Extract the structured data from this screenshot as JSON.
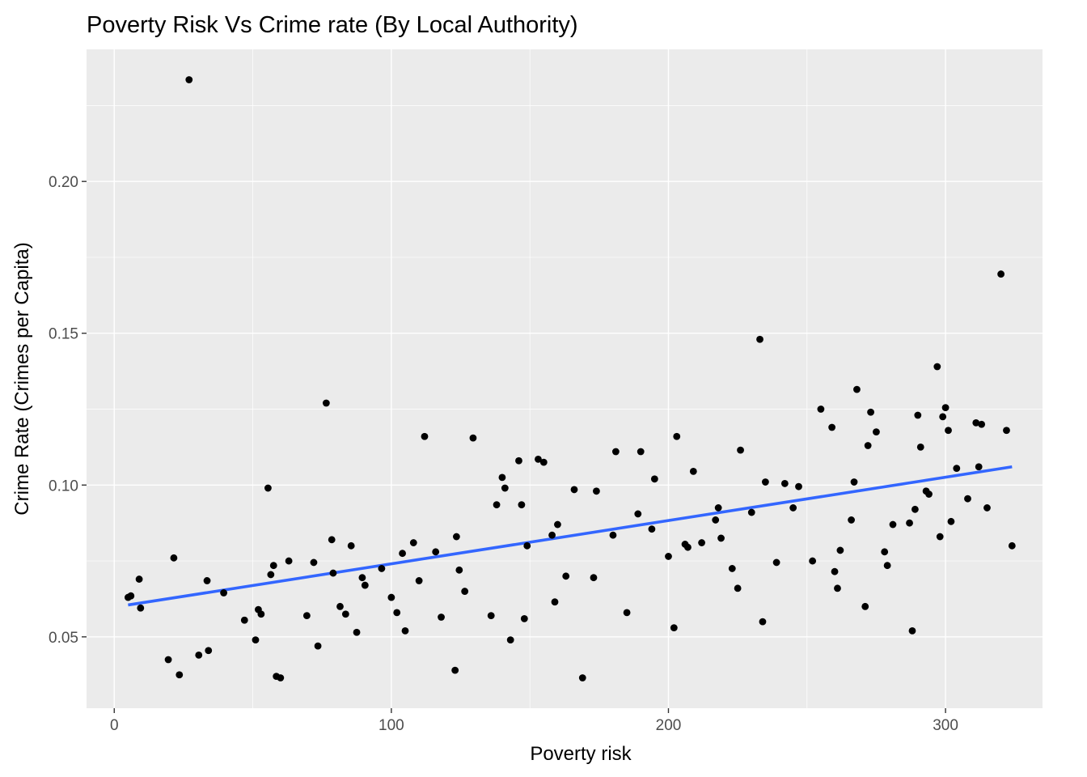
{
  "chart_data": {
    "type": "scatter",
    "title": "Poverty Risk Vs Crime rate (By Local Authority)",
    "xlabel": "Poverty risk",
    "ylabel": "Crime Rate (Crimes per Capita)",
    "xlim": [
      -10,
      335
    ],
    "ylim": [
      0.0265,
      0.2435
    ],
    "x_ticks": [
      0,
      100,
      200,
      300
    ],
    "y_ticks": [
      0.05,
      0.1,
      0.15,
      0.2
    ],
    "x_tick_labels": [
      "0",
      "100",
      "200",
      "300"
    ],
    "y_tick_labels": [
      "0.05",
      "0.10",
      "0.15",
      "0.20"
    ],
    "x_minor_ticks": [
      50,
      150,
      250
    ],
    "y_minor_ticks": [
      0.075,
      0.125,
      0.175,
      0.225
    ],
    "panel_background": "#ebebeb",
    "point_color": "#000000",
    "trend_color": "#3366ff",
    "grid": true,
    "series": [
      {
        "points": [
          [
            5,
            0.063
          ],
          [
            6,
            0.0635
          ],
          [
            9,
            0.069
          ],
          [
            9.5,
            0.0595
          ],
          [
            19.5,
            0.0425
          ],
          [
            21.5,
            0.076
          ],
          [
            23.5,
            0.0375
          ],
          [
            27,
            0.2335
          ],
          [
            30.5,
            0.044
          ],
          [
            33.5,
            0.0685
          ],
          [
            34,
            0.0455
          ],
          [
            39.5,
            0.0645
          ],
          [
            47,
            0.0555
          ],
          [
            51,
            0.049
          ],
          [
            52,
            0.059
          ],
          [
            53,
            0.0575
          ],
          [
            55.5,
            0.099
          ],
          [
            56.5,
            0.0705
          ],
          [
            57.5,
            0.0735
          ],
          [
            58.5,
            0.037
          ],
          [
            60,
            0.0365
          ],
          [
            63,
            0.075
          ],
          [
            69.5,
            0.057
          ],
          [
            72,
            0.0745
          ],
          [
            73.5,
            0.047
          ],
          [
            76.5,
            0.127
          ],
          [
            78.5,
            0.082
          ],
          [
            79,
            0.071
          ],
          [
            81.5,
            0.06
          ],
          [
            83.5,
            0.0575
          ],
          [
            85.5,
            0.08
          ],
          [
            87.5,
            0.0515
          ],
          [
            89.5,
            0.0695
          ],
          [
            90.5,
            0.067
          ],
          [
            96.5,
            0.0725
          ],
          [
            100,
            0.063
          ],
          [
            102,
            0.058
          ],
          [
            104,
            0.0775
          ],
          [
            105,
            0.052
          ],
          [
            108,
            0.081
          ],
          [
            110,
            0.0685
          ],
          [
            112,
            0.116
          ],
          [
            116,
            0.078
          ],
          [
            118,
            0.0565
          ],
          [
            123,
            0.039
          ],
          [
            123.5,
            0.083
          ],
          [
            124.5,
            0.072
          ],
          [
            126.5,
            0.065
          ],
          [
            129.5,
            0.1155
          ],
          [
            136,
            0.057
          ],
          [
            138,
            0.0935
          ],
          [
            140,
            0.1025
          ],
          [
            141,
            0.099
          ],
          [
            143,
            0.049
          ],
          [
            146,
            0.108
          ],
          [
            147,
            0.0935
          ],
          [
            148,
            0.056
          ],
          [
            149,
            0.08
          ],
          [
            153,
            0.1085
          ],
          [
            155,
            0.1075
          ],
          [
            158,
            0.0835
          ],
          [
            159,
            0.0615
          ],
          [
            160,
            0.087
          ],
          [
            163,
            0.07
          ],
          [
            166,
            0.0985
          ],
          [
            169,
            0.0365
          ],
          [
            173,
            0.0695
          ],
          [
            174,
            0.098
          ],
          [
            180,
            0.0835
          ],
          [
            181,
            0.111
          ],
          [
            185,
            0.058
          ],
          [
            189,
            0.0905
          ],
          [
            190,
            0.111
          ],
          [
            194,
            0.0855
          ],
          [
            195,
            0.102
          ],
          [
            200,
            0.0765
          ],
          [
            202,
            0.053
          ],
          [
            203,
            0.116
          ],
          [
            206,
            0.0805
          ],
          [
            207,
            0.0795
          ],
          [
            209,
            0.1045
          ],
          [
            212,
            0.081
          ],
          [
            217,
            0.0885
          ],
          [
            218,
            0.0925
          ],
          [
            219,
            0.0825
          ],
          [
            223,
            0.0725
          ],
          [
            225,
            0.066
          ],
          [
            226,
            0.1115
          ],
          [
            230,
            0.091
          ],
          [
            233,
            0.148
          ],
          [
            234,
            0.055
          ],
          [
            235,
            0.101
          ],
          [
            239,
            0.0745
          ],
          [
            242,
            0.1005
          ],
          [
            245,
            0.0925
          ],
          [
            247,
            0.0995
          ],
          [
            252,
            0.075
          ],
          [
            255,
            0.125
          ],
          [
            259,
            0.119
          ],
          [
            260,
            0.0715
          ],
          [
            261,
            0.066
          ],
          [
            262,
            0.0785
          ],
          [
            266,
            0.0885
          ],
          [
            267,
            0.101
          ],
          [
            268,
            0.1315
          ],
          [
            271,
            0.06
          ],
          [
            272,
            0.113
          ],
          [
            273,
            0.124
          ],
          [
            275,
            0.1175
          ],
          [
            278,
            0.078
          ],
          [
            279,
            0.0735
          ],
          [
            281,
            0.087
          ],
          [
            287,
            0.0875
          ],
          [
            288,
            0.052
          ],
          [
            289,
            0.092
          ],
          [
            290,
            0.123
          ],
          [
            291,
            0.1125
          ],
          [
            293,
            0.098
          ],
          [
            294,
            0.097
          ],
          [
            297,
            0.139
          ],
          [
            298,
            0.083
          ],
          [
            299,
            0.1225
          ],
          [
            300,
            0.1255
          ],
          [
            301,
            0.118
          ],
          [
            302,
            0.088
          ],
          [
            304,
            0.1055
          ],
          [
            308,
            0.0955
          ],
          [
            311,
            0.1205
          ],
          [
            312,
            0.106
          ],
          [
            313,
            0.12
          ],
          [
            315,
            0.0925
          ],
          [
            320,
            0.1695
          ],
          [
            322,
            0.118
          ],
          [
            324,
            0.08
          ]
        ]
      }
    ],
    "trend_line": {
      "x": [
        5,
        324
      ],
      "y": [
        0.0605,
        0.106
      ]
    }
  }
}
